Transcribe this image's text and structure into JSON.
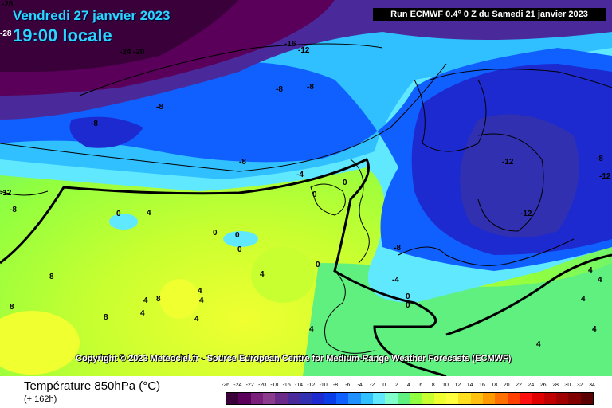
{
  "header": {
    "date": "Vendredi 27 janvier 2023",
    "time": "19:00 locale",
    "run": "Run ECMWF 0.4° 0 Z du Samedi 21 janvier 2023"
  },
  "copyright": "Copyright © 2023 Meteociel.fr - Source European Centre for Medium-Range Weather Forecasts (ECMWF)",
  "legend": {
    "variable": "Température 850hPa (°C)",
    "lead": "(+ 162h)",
    "ticks": [
      "-26",
      "-24",
      "-22",
      "-20",
      "-18",
      "-16",
      "-14",
      "-12",
      "-10",
      "-8",
      "-6",
      "-4",
      "-2",
      "0",
      "2",
      "4",
      "6",
      "8",
      "10",
      "12",
      "14",
      "16",
      "18",
      "20",
      "22",
      "24",
      "26",
      "28",
      "30",
      "32",
      "34"
    ],
    "colors": [
      "#3a003a",
      "#5a005a",
      "#7a1f7a",
      "#8c3c8c",
      "#6a2a8a",
      "#4a2a9a",
      "#3030b0",
      "#1c2ad0",
      "#0a3ce8",
      "#1060ff",
      "#2090ff",
      "#30c0ff",
      "#60e8ff",
      "#80ffcc",
      "#60f080",
      "#90ff40",
      "#c8ff30",
      "#f0ff30",
      "#ffff40",
      "#ffe020",
      "#ffc010",
      "#ff9a00",
      "#ff7000",
      "#ff4000",
      "#ff1010",
      "#e00000",
      "#c00000",
      "#a00000",
      "#800000",
      "#5a0000"
    ]
  },
  "map_labels": [
    {
      "text": "-28"
    },
    {
      "text": "-28"
    },
    {
      "text": "-24"
    },
    {
      "text": "-20"
    },
    {
      "text": "-16"
    },
    {
      "text": "-12"
    },
    {
      "text": "-8"
    },
    {
      "text": "-8"
    },
    {
      "text": "-8"
    },
    {
      "text": "-8"
    },
    {
      "text": "-8"
    },
    {
      "text": "-4"
    },
    {
      "text": "0"
    },
    {
      "text": "0"
    },
    {
      "text": "-12"
    },
    {
      "text": "-12"
    },
    {
      "text": "-8"
    },
    {
      "text": "-8"
    },
    {
      "text": "-12"
    },
    {
      "text": "-12"
    },
    {
      "text": "0"
    },
    {
      "text": "4"
    },
    {
      "text": "0"
    },
    {
      "text": "0"
    },
    {
      "text": "0"
    },
    {
      "text": "4"
    },
    {
      "text": "0"
    },
    {
      "text": "8"
    },
    {
      "text": "8"
    },
    {
      "text": "8"
    },
    {
      "text": "4"
    },
    {
      "text": "4"
    },
    {
      "text": "4"
    },
    {
      "text": "8"
    },
    {
      "text": "4"
    },
    {
      "text": "4"
    },
    {
      "text": "4"
    },
    {
      "text": "-4"
    },
    {
      "text": "0"
    },
    {
      "text": "0"
    },
    {
      "text": "-8"
    },
    {
      "text": "4"
    },
    {
      "text": "4"
    },
    {
      "text": "4"
    },
    {
      "text": "4"
    },
    {
      "text": "4"
    }
  ]
}
